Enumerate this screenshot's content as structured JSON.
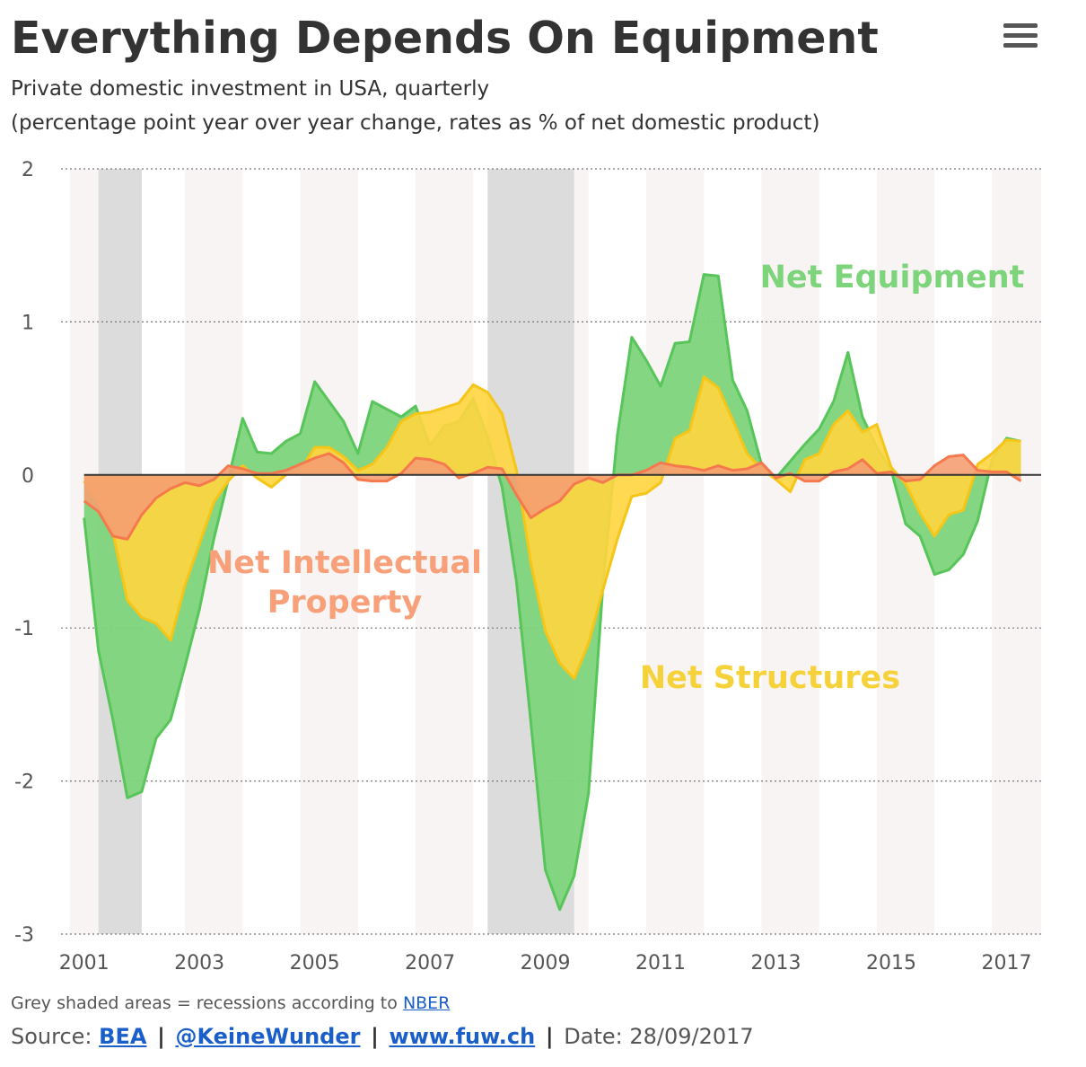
{
  "header": {
    "title": "Everything Depends On Equipment",
    "subtitle_line1": "Private domestic investment in USA, quarterly",
    "subtitle_line2": "(percentage point year over year change, rates as % of net domestic product)"
  },
  "menu_icon": "hamburger-menu-icon",
  "footer": {
    "note_text": "Grey shaded areas = recessions according to",
    "note_link": "NBER",
    "source_label": "Source:",
    "source_bea": "BEA",
    "source_twitter": "@KeineWunder",
    "source_site": "www.fuw.ch",
    "sep": "|",
    "date_text": "Date: 28/09/2017"
  },
  "colors": {
    "equipment_fill": "#7dd47b",
    "equipment_line": "#58c55a",
    "structures_fill": "#ffd53f",
    "structures_line": "#f5c518",
    "ip_fill": "#f59f72",
    "ip_line": "#f47a4e",
    "recession": "#dcdcdc",
    "band": "#f8f4f4",
    "link": "#1a5fc9"
  },
  "chart_data": {
    "type": "area",
    "title": "Everything Depends On Equipment",
    "ylim": [
      -3,
      2
    ],
    "xlim": [
      2000.6,
      2017.6
    ],
    "grid": true,
    "y_ticks": [
      2,
      1,
      0,
      -1,
      -2,
      -3
    ],
    "x_ticks": [
      "2001",
      "2003",
      "2005",
      "2007",
      "2009",
      "2011",
      "2013",
      "2015",
      "2017"
    ],
    "recessions": [
      [
        2001.25,
        2002.0
      ],
      [
        2008.0,
        2009.5
      ]
    ],
    "annotations": [
      {
        "text": "Net Equipment",
        "series": "Net Equipment"
      },
      {
        "text": "Net Intellectual",
        "series": "Net Intellectual Property"
      },
      {
        "text": "Property",
        "series": "Net Intellectual Property"
      },
      {
        "text": "Net Structures",
        "series": "Net Structures"
      }
    ],
    "x": [
      2001.0,
      2001.25,
      2001.5,
      2001.75,
      2002.0,
      2002.25,
      2002.5,
      2002.75,
      2003.0,
      2003.25,
      2003.5,
      2003.75,
      2004.0,
      2004.25,
      2004.5,
      2004.75,
      2005.0,
      2005.25,
      2005.5,
      2005.75,
      2006.0,
      2006.25,
      2006.5,
      2006.75,
      2007.0,
      2007.25,
      2007.5,
      2007.75,
      2008.0,
      2008.25,
      2008.5,
      2008.75,
      2009.0,
      2009.25,
      2009.5,
      2009.75,
      2010.0,
      2010.25,
      2010.5,
      2010.75,
      2011.0,
      2011.25,
      2011.5,
      2011.75,
      2012.0,
      2012.25,
      2012.5,
      2012.75,
      2013.0,
      2013.25,
      2013.5,
      2013.75,
      2014.0,
      2014.25,
      2014.5,
      2014.75,
      2015.0,
      2015.25,
      2015.5,
      2015.75,
      2016.0,
      2016.25,
      2016.5,
      2016.75,
      2017.0,
      2017.25
    ],
    "series": [
      {
        "name": "Net Equipment",
        "values": [
          -0.28,
          -1.15,
          -1.6,
          -2.11,
          -2.07,
          -1.72,
          -1.6,
          -1.25,
          -0.88,
          -0.42,
          -0.03,
          0.37,
          0.15,
          0.14,
          0.22,
          0.27,
          0.61,
          0.48,
          0.35,
          0.14,
          0.48,
          0.43,
          0.38,
          0.45,
          0.19,
          0.32,
          0.35,
          0.5,
          0.25,
          -0.08,
          -0.7,
          -1.62,
          -2.58,
          -2.84,
          -2.62,
          -2.08,
          -0.72,
          0.26,
          0.9,
          0.75,
          0.58,
          0.86,
          0.87,
          1.31,
          1.3,
          0.62,
          0.42,
          0.07,
          -0.02,
          0.09,
          0.2,
          0.3,
          0.48,
          0.8,
          0.38,
          0.18,
          0.03,
          -0.32,
          -0.4,
          -0.65,
          -0.62,
          -0.52,
          -0.3,
          0.1,
          0.24,
          0.22
        ]
      },
      {
        "name": "Net Structures",
        "values": [
          -0.04,
          -0.18,
          -0.38,
          -0.82,
          -0.93,
          -0.97,
          -1.08,
          -0.72,
          -0.45,
          -0.18,
          -0.04,
          0.06,
          -0.02,
          -0.08,
          0.0,
          0.03,
          0.18,
          0.18,
          0.12,
          0.03,
          0.07,
          0.18,
          0.35,
          0.4,
          0.41,
          0.44,
          0.47,
          0.59,
          0.54,
          0.4,
          0.03,
          -0.58,
          -1.02,
          -1.23,
          -1.33,
          -1.1,
          -0.75,
          -0.42,
          -0.14,
          -0.12,
          -0.05,
          0.24,
          0.29,
          0.64,
          0.57,
          0.36,
          0.14,
          0.04,
          -0.03,
          -0.11,
          0.1,
          0.14,
          0.33,
          0.42,
          0.28,
          0.33,
          0.05,
          -0.06,
          -0.25,
          -0.4,
          -0.26,
          -0.23,
          0.07,
          0.14,
          0.23,
          0.22
        ]
      },
      {
        "name": "Net Intellectual Property",
        "values": [
          -0.17,
          -0.24,
          -0.4,
          -0.42,
          -0.26,
          -0.15,
          -0.09,
          -0.05,
          -0.07,
          -0.03,
          0.06,
          0.04,
          0.01,
          0.01,
          0.03,
          0.07,
          0.11,
          0.14,
          0.08,
          -0.03,
          -0.04,
          -0.04,
          0.01,
          0.11,
          0.1,
          0.07,
          -0.02,
          0.01,
          0.05,
          0.04,
          -0.13,
          -0.28,
          -0.22,
          -0.17,
          -0.06,
          -0.02,
          -0.05,
          0.0,
          0.0,
          0.03,
          0.08,
          0.06,
          0.05,
          0.03,
          0.06,
          0.03,
          0.04,
          0.08,
          -0.02,
          0.01,
          -0.04,
          -0.04,
          0.02,
          0.04,
          0.1,
          0.01,
          0.02,
          -0.04,
          -0.03,
          0.06,
          0.12,
          0.13,
          0.03,
          0.02,
          0.02,
          -0.04
        ]
      }
    ]
  }
}
